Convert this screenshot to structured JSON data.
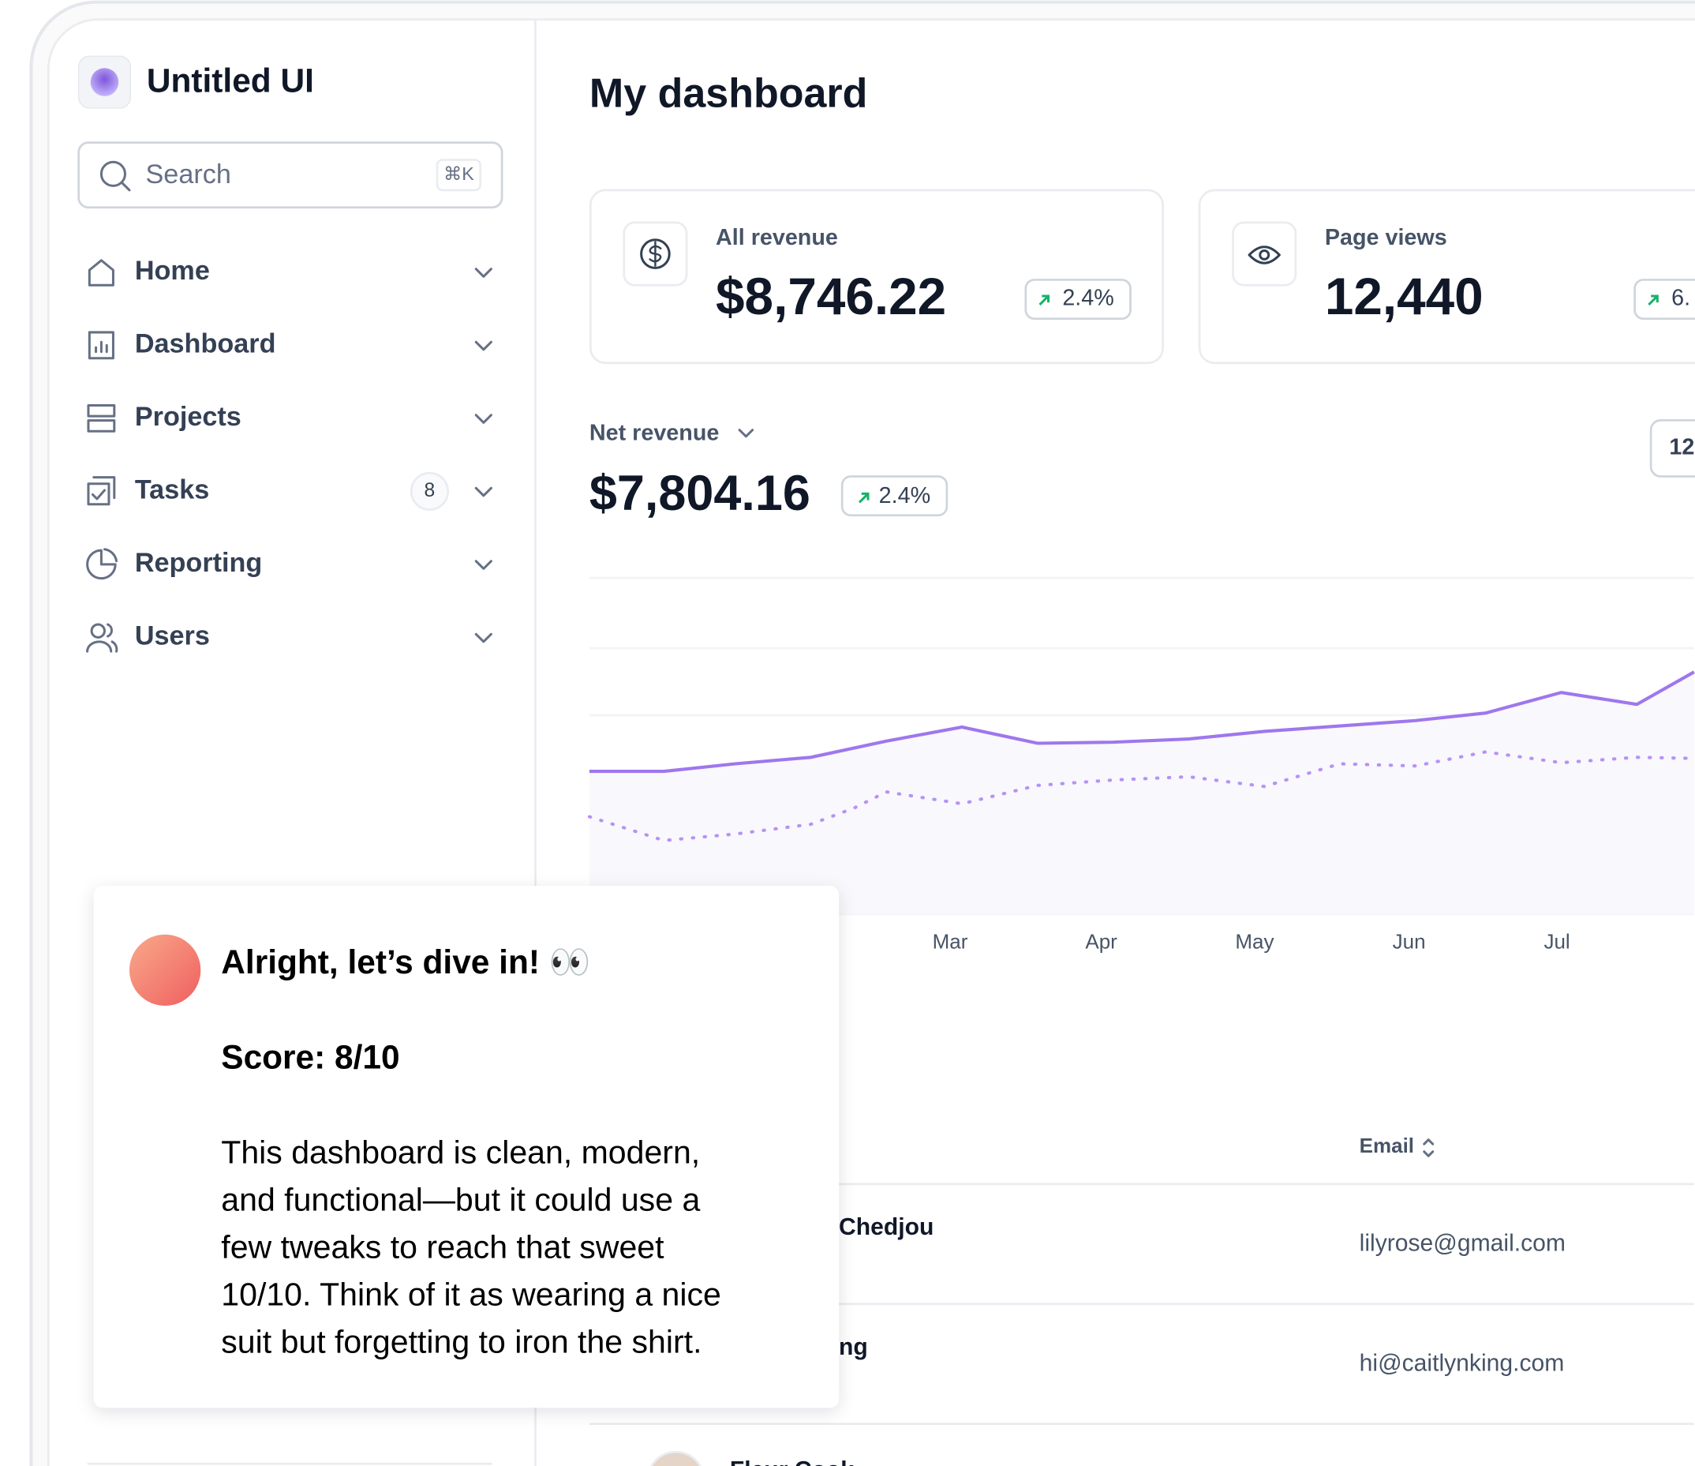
{
  "sidebar": {
    "brand": "Untitled UI",
    "search": {
      "placeholder": "Search",
      "shortcut": "⌘K"
    },
    "nav": [
      {
        "label": "Home"
      },
      {
        "label": "Dashboard"
      },
      {
        "label": "Projects"
      },
      {
        "label": "Tasks",
        "badge": "8"
      },
      {
        "label": "Reporting"
      },
      {
        "label": "Users"
      }
    ]
  },
  "header": {
    "title": "My dashboard"
  },
  "metrics": [
    {
      "label": "All revenue",
      "value": "$8,746.22",
      "change": "2.4%"
    },
    {
      "label": "Page views",
      "value": "12,440",
      "change": "6."
    }
  ],
  "net_revenue": {
    "label": "Net revenue",
    "value": "$7,804.16",
    "change": "2.4%",
    "period": "12",
    "months": [
      "Mar",
      "Apr",
      "May",
      "Jun",
      "Jul"
    ]
  },
  "table": {
    "email_header": "Email",
    "rows": [
      {
        "name": "Chedjou",
        "email": "lilyrose@gmail.com"
      },
      {
        "name": "ng",
        "email": "hi@caitlynking.com"
      },
      {
        "name": "Fleur Cook"
      }
    ]
  },
  "comment": {
    "title": "Alright, let’s dive in! 👀",
    "score": "Score: 8/10",
    "body": [
      "This dashboard is clean, modern,",
      "and functional—but it could use a",
      "few tweaks to reach that sweet",
      "10/10. Think of it as wearing a nice",
      "suit but forgetting to iron the shirt."
    ]
  }
}
